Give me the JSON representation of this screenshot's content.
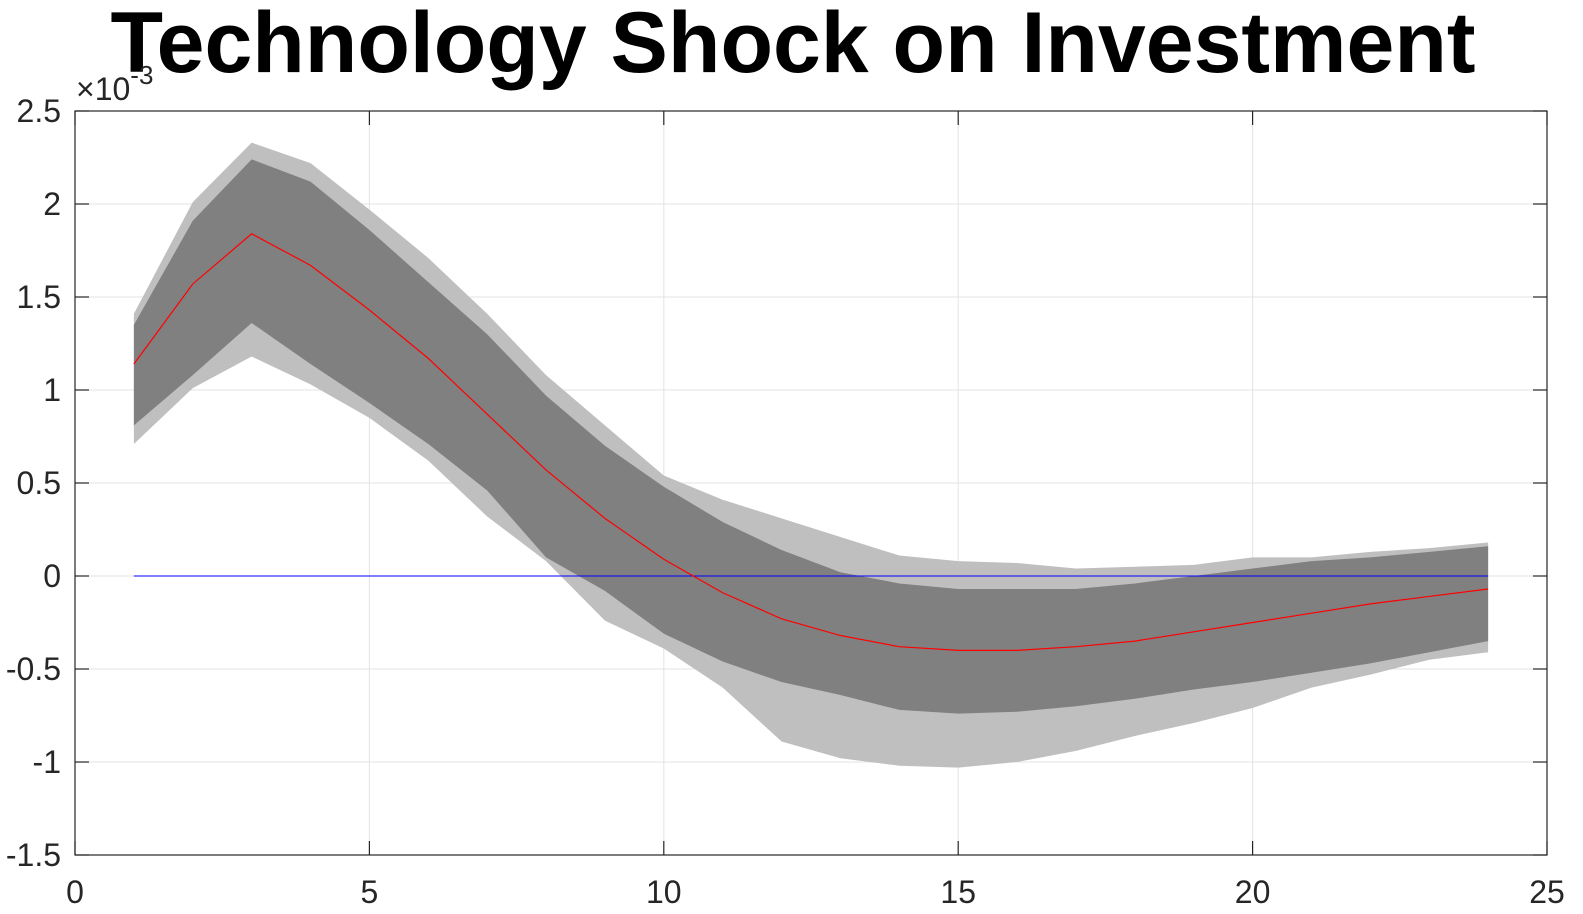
{
  "chart_data": {
    "type": "area",
    "title": "Technology Shock on Investment",
    "xlabel": "",
    "ylabel": "",
    "y_exponent_label": "×10",
    "y_exponent_power": "-3",
    "xlim": [
      0,
      25
    ],
    "ylim": [
      -1.5,
      2.5
    ],
    "grid": true,
    "x_ticks": [
      0,
      5,
      10,
      15,
      20,
      25
    ],
    "x_tick_labels": [
      "0",
      "5",
      "10",
      "15",
      "20",
      "25"
    ],
    "y_ticks": [
      -1.5,
      -1,
      -0.5,
      0,
      0.5,
      1,
      1.5,
      2,
      2.5
    ],
    "y_tick_labels": [
      "-1.5",
      "-1",
      "-0.5",
      "0",
      "0.5",
      "1",
      "1.5",
      "2",
      "2.5"
    ],
    "x": [
      1,
      2,
      3,
      4,
      5,
      6,
      7,
      8,
      9,
      10,
      11,
      12,
      13,
      14,
      15,
      16,
      17,
      18,
      19,
      20,
      21,
      22,
      23,
      24
    ],
    "series": [
      {
        "role": "outer-band",
        "color": "#bfbfbf",
        "upper": [
          1.41,
          2.01,
          2.33,
          2.22,
          1.97,
          1.71,
          1.41,
          1.08,
          0.81,
          0.54,
          0.41,
          0.31,
          0.21,
          0.11,
          0.08,
          0.07,
          0.04,
          0.05,
          0.06,
          0.1,
          0.1,
          0.13,
          0.15,
          0.18
        ],
        "lower": [
          0.71,
          1.01,
          1.18,
          1.03,
          0.85,
          0.62,
          0.32,
          0.08,
          -0.24,
          -0.39,
          -0.6,
          -0.89,
          -0.98,
          -1.02,
          -1.03,
          -1.0,
          -0.94,
          -0.86,
          -0.79,
          -0.71,
          -0.6,
          -0.53,
          -0.45,
          -0.41
        ]
      },
      {
        "role": "inner-band",
        "color": "#808080",
        "upper": [
          1.35,
          1.91,
          2.24,
          2.12,
          1.86,
          1.58,
          1.3,
          0.97,
          0.7,
          0.48,
          0.29,
          0.14,
          0.02,
          -0.04,
          -0.07,
          -0.07,
          -0.07,
          -0.04,
          0.0,
          0.04,
          0.08,
          0.1,
          0.13,
          0.16
        ],
        "lower": [
          0.81,
          1.08,
          1.36,
          1.14,
          0.93,
          0.71,
          0.46,
          0.1,
          -0.08,
          -0.31,
          -0.46,
          -0.57,
          -0.64,
          -0.72,
          -0.74,
          -0.73,
          -0.7,
          -0.66,
          -0.61,
          -0.57,
          -0.52,
          -0.47,
          -0.41,
          -0.35
        ]
      },
      {
        "role": "median",
        "color": "#ff0000",
        "values": [
          1.14,
          1.57,
          1.84,
          1.67,
          1.43,
          1.17,
          0.87,
          0.57,
          0.31,
          0.09,
          -0.09,
          -0.23,
          -0.32,
          -0.38,
          -0.4,
          -0.4,
          -0.38,
          -0.35,
          -0.3,
          -0.25,
          -0.2,
          -0.15,
          -0.11,
          -0.07
        ]
      },
      {
        "role": "zero-line",
        "color": "#0000ff",
        "values": [
          0,
          0,
          0,
          0,
          0,
          0,
          0,
          0,
          0,
          0,
          0,
          0,
          0,
          0,
          0,
          0,
          0,
          0,
          0,
          0,
          0,
          0,
          0,
          0
        ]
      }
    ]
  }
}
